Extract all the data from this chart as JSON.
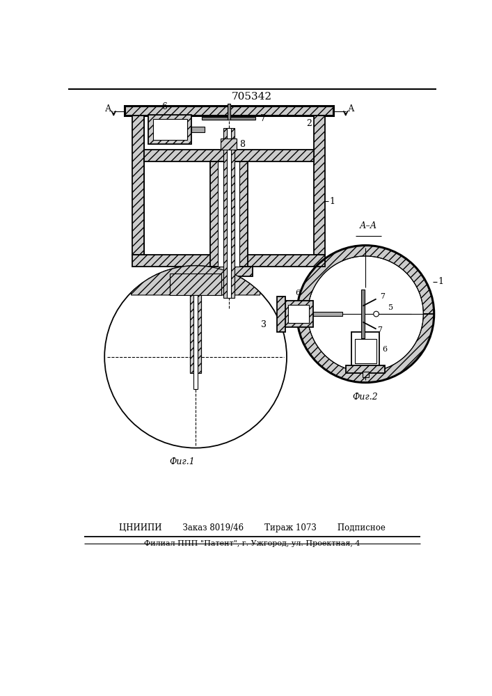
{
  "title": "705342",
  "bg_color": "#ffffff",
  "line_color": "#000000",
  "fig1_label": "Фиг.1",
  "fig2_label": "Фиг.2",
  "section_label": "А–А",
  "bottom_line1": "ЦНИИПИ        Заказ 8019/46        Тираж 1073        Подписное",
  "bottom_line2": "Филиал ППП \"Патент\", г. Ужгород, ул. Проектная, 4",
  "arrow_label": "А"
}
